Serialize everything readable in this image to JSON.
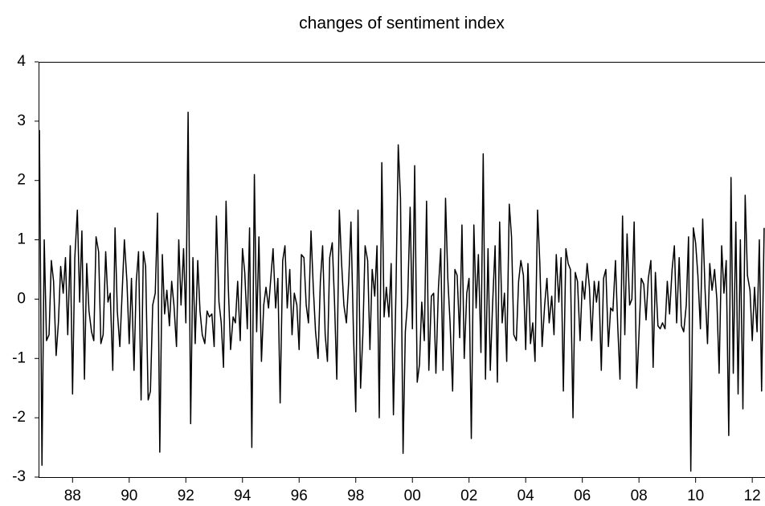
{
  "chart_data": {
    "type": "line",
    "title": "changes of sentiment index",
    "color": "#000000",
    "xlim": [
      1986.8,
      2012.45
    ],
    "ylim": [
      -3,
      4
    ],
    "yticks": [
      -3,
      -2,
      -1,
      0,
      1,
      2,
      3,
      4
    ],
    "xticks": [
      {
        "value": 1988,
        "label": "88"
      },
      {
        "value": 1990,
        "label": "90"
      },
      {
        "value": 1992,
        "label": "92"
      },
      {
        "value": 1994,
        "label": "94"
      },
      {
        "value": 1996,
        "label": "96"
      },
      {
        "value": 1998,
        "label": "98"
      },
      {
        "value": 2000,
        "label": "00"
      },
      {
        "value": 2002,
        "label": "02"
      },
      {
        "value": 2004,
        "label": "04"
      },
      {
        "value": 2006,
        "label": "06"
      },
      {
        "value": 2008,
        "label": "08"
      },
      {
        "value": 2010,
        "label": "10"
      },
      {
        "value": 2012,
        "label": "12"
      }
    ],
    "x": [
      1986.83,
      1986.92,
      1987,
      1987.08,
      1987.17,
      1987.25,
      1987.33,
      1987.42,
      1987.5,
      1987.58,
      1987.67,
      1987.75,
      1987.83,
      1987.92,
      1988,
      1988.08,
      1988.17,
      1988.25,
      1988.33,
      1988.42,
      1988.5,
      1988.58,
      1988.67,
      1988.75,
      1988.83,
      1988.92,
      1989,
      1989.08,
      1989.17,
      1989.25,
      1989.33,
      1989.42,
      1989.5,
      1989.58,
      1989.67,
      1989.75,
      1989.83,
      1989.92,
      1990,
      1990.08,
      1990.17,
      1990.25,
      1990.33,
      1990.42,
      1990.5,
      1990.58,
      1990.67,
      1990.75,
      1990.83,
      1990.92,
      1991,
      1991.08,
      1991.17,
      1991.25,
      1991.33,
      1991.42,
      1991.5,
      1991.58,
      1991.67,
      1991.75,
      1991.83,
      1991.92,
      1992,
      1992.08,
      1992.17,
      1992.25,
      1992.33,
      1992.42,
      1992.5,
      1992.58,
      1992.67,
      1992.75,
      1992.83,
      1992.92,
      1993,
      1993.08,
      1993.17,
      1993.25,
      1993.33,
      1993.42,
      1993.5,
      1993.58,
      1993.67,
      1993.75,
      1993.83,
      1993.92,
      1994,
      1994.08,
      1994.17,
      1994.25,
      1994.33,
      1994.42,
      1994.5,
      1994.58,
      1994.67,
      1994.75,
      1994.83,
      1994.92,
      1995,
      1995.08,
      1995.17,
      1995.25,
      1995.33,
      1995.42,
      1995.5,
      1995.58,
      1995.67,
      1995.75,
      1995.83,
      1995.92,
      1996,
      1996.08,
      1996.17,
      1996.25,
      1996.33,
      1996.42,
      1996.5,
      1996.58,
      1996.67,
      1996.75,
      1996.83,
      1996.92,
      1997,
      1997.08,
      1997.17,
      1997.25,
      1997.33,
      1997.42,
      1997.5,
      1997.58,
      1997.67,
      1997.75,
      1997.83,
      1997.92,
      1998,
      1998.08,
      1998.17,
      1998.25,
      1998.33,
      1998.42,
      1998.5,
      1998.58,
      1998.67,
      1998.75,
      1998.83,
      1998.92,
      1999,
      1999.08,
      1999.17,
      1999.25,
      1999.33,
      1999.42,
      1999.5,
      1999.58,
      1999.67,
      1999.75,
      1999.83,
      1999.92,
      2000,
      2000.08,
      2000.17,
      2000.25,
      2000.33,
      2000.42,
      2000.5,
      2000.58,
      2000.67,
      2000.75,
      2000.83,
      2000.92,
      2001,
      2001.08,
      2001.17,
      2001.25,
      2001.33,
      2001.42,
      2001.5,
      2001.58,
      2001.67,
      2001.75,
      2001.83,
      2001.92,
      2002,
      2002.08,
      2002.17,
      2002.25,
      2002.33,
      2002.42,
      2002.5,
      2002.58,
      2002.67,
      2002.75,
      2002.83,
      2002.92,
      2003,
      2003.08,
      2003.17,
      2003.25,
      2003.33,
      2003.42,
      2003.5,
      2003.58,
      2003.67,
      2003.75,
      2003.83,
      2003.92,
      2004,
      2004.08,
      2004.17,
      2004.25,
      2004.33,
      2004.42,
      2004.5,
      2004.58,
      2004.67,
      2004.75,
      2004.83,
      2004.92,
      2005,
      2005.08,
      2005.17,
      2005.25,
      2005.33,
      2005.42,
      2005.5,
      2005.58,
      2005.67,
      2005.75,
      2005.83,
      2005.92,
      2006,
      2006.08,
      2006.17,
      2006.25,
      2006.33,
      2006.42,
      2006.5,
      2006.58,
      2006.67,
      2006.75,
      2006.83,
      2006.92,
      2007,
      2007.08,
      2007.17,
      2007.25,
      2007.33,
      2007.42,
      2007.5,
      2007.58,
      2007.67,
      2007.75,
      2007.83,
      2007.92,
      2008,
      2008.08,
      2008.17,
      2008.25,
      2008.33,
      2008.42,
      2008.5,
      2008.58,
      2008.67,
      2008.75,
      2008.83,
      2008.92,
      2009,
      2009.08,
      2009.17,
      2009.25,
      2009.33,
      2009.42,
      2009.5,
      2009.58,
      2009.67,
      2009.75,
      2009.83,
      2009.92,
      2010,
      2010.08,
      2010.17,
      2010.25,
      2010.33,
      2010.42,
      2010.5,
      2010.58,
      2010.67,
      2010.75,
      2010.83,
      2010.92,
      2011,
      2011.08,
      2011.17,
      2011.25,
      2011.33,
      2011.42,
      2011.5,
      2011.58,
      2011.67,
      2011.75,
      2011.83,
      2011.92,
      2012,
      2012.08,
      2012.17,
      2012.25,
      2012.33,
      2012.42
    ],
    "values": [
      2.85,
      -2.8,
      1.0,
      -0.7,
      -0.6,
      0.65,
      0.3,
      -0.95,
      -0.4,
      0.55,
      0.1,
      0.7,
      -0.6,
      0.9,
      -1.6,
      0.7,
      1.5,
      -0.05,
      1.15,
      -1.35,
      0.6,
      -0.2,
      -0.55,
      -0.7,
      1.05,
      0.8,
      -0.75,
      -0.6,
      0.8,
      -0.05,
      0.1,
      -1.2,
      1.2,
      -0.2,
      -0.8,
      0.1,
      1.0,
      0.3,
      -0.75,
      0.35,
      -1.2,
      0.3,
      0.8,
      -1.7,
      0.8,
      0.55,
      -1.7,
      -1.55,
      -0.1,
      0.1,
      1.45,
      -2.58,
      0.75,
      -0.25,
      0.15,
      -0.45,
      0.3,
      -0.1,
      -0.8,
      1.0,
      -0.1,
      0.85,
      -0.4,
      3.15,
      -2.1,
      0.7,
      -0.75,
      0.65,
      -0.2,
      -0.6,
      -0.75,
      -0.2,
      -0.3,
      -0.25,
      -0.8,
      1.4,
      -0.05,
      -0.4,
      -1.15,
      1.65,
      0.2,
      -0.85,
      -0.3,
      -0.4,
      0.3,
      -0.7,
      0.85,
      0.45,
      -0.5,
      1.2,
      -2.5,
      2.1,
      -0.55,
      1.05,
      -1.05,
      -0.1,
      0.2,
      -0.15,
      0.35,
      0.85,
      -0.15,
      0.35,
      -1.75,
      0.65,
      0.9,
      -0.15,
      0.5,
      -0.6,
      0.1,
      -0.1,
      -0.85,
      0.75,
      0.7,
      -0.1,
      -0.4,
      1.15,
      0.2,
      -0.55,
      -1.0,
      0.3,
      0.9,
      -0.6,
      -1.05,
      0.7,
      0.95,
      -0.05,
      -1.35,
      1.5,
      0.6,
      -0.1,
      -0.4,
      0.3,
      1.3,
      -0.6,
      -1.9,
      1.5,
      -1.5,
      -0.6,
      0.9,
      0.65,
      -0.85,
      0.5,
      0.05,
      0.9,
      -2.0,
      2.3,
      -0.3,
      0.2,
      -0.3,
      0.6,
      -1.95,
      0.15,
      2.6,
      1.7,
      -2.6,
      -0.55,
      -0.05,
      1.55,
      -0.5,
      2.25,
      -1.4,
      -1.1,
      -0.05,
      -0.7,
      1.65,
      -1.2,
      0.05,
      0.1,
      -1.25,
      0.2,
      0.85,
      -1.2,
      1.7,
      0.35,
      -0.4,
      -1.55,
      0.5,
      0.4,
      -0.65,
      1.25,
      -1.0,
      0.1,
      0.35,
      -2.35,
      1.25,
      -0.15,
      0.75,
      -0.9,
      2.45,
      -1.35,
      0.85,
      -1.2,
      -0.1,
      0.9,
      -1.4,
      1.3,
      -0.4,
      0.1,
      -1.05,
      1.6,
      1.05,
      -0.6,
      -0.7,
      0.3,
      0.65,
      0.4,
      -0.85,
      0.6,
      -0.75,
      -0.4,
      -1.05,
      1.5,
      0.6,
      -0.8,
      -0.1,
      0.35,
      -0.4,
      0.05,
      -0.6,
      0.75,
      -0.05,
      0.7,
      -1.55,
      0.85,
      0.6,
      0.5,
      -2.0,
      0.45,
      0.3,
      -0.7,
      0.3,
      0.0,
      0.6,
      0.2,
      -0.7,
      0.3,
      -0.05,
      0.3,
      -1.2,
      0.35,
      0.5,
      -0.8,
      -0.15,
      -0.2,
      0.65,
      -0.45,
      -1.35,
      1.4,
      -0.6,
      1.1,
      -0.1,
      0.0,
      1.3,
      -1.5,
      -0.6,
      0.35,
      0.25,
      -0.35,
      0.35,
      0.65,
      -1.15,
      0.45,
      -0.45,
      -0.5,
      -0.4,
      -0.5,
      0.3,
      -0.25,
      0.5,
      0.9,
      -0.4,
      0.7,
      -0.45,
      -0.55,
      -0.1,
      1.05,
      -2.9,
      1.2,
      0.95,
      0.4,
      -0.5,
      1.35,
      0.2,
      -0.75,
      0.6,
      0.15,
      0.5,
      0.0,
      -1.25,
      0.9,
      0.1,
      0.65,
      -2.3,
      2.05,
      -1.25,
      1.3,
      -1.6,
      1.0,
      -1.85,
      1.75,
      0.4,
      0.15,
      -0.7,
      0.2,
      -0.55,
      1.0,
      -1.55,
      1.2
    ]
  }
}
